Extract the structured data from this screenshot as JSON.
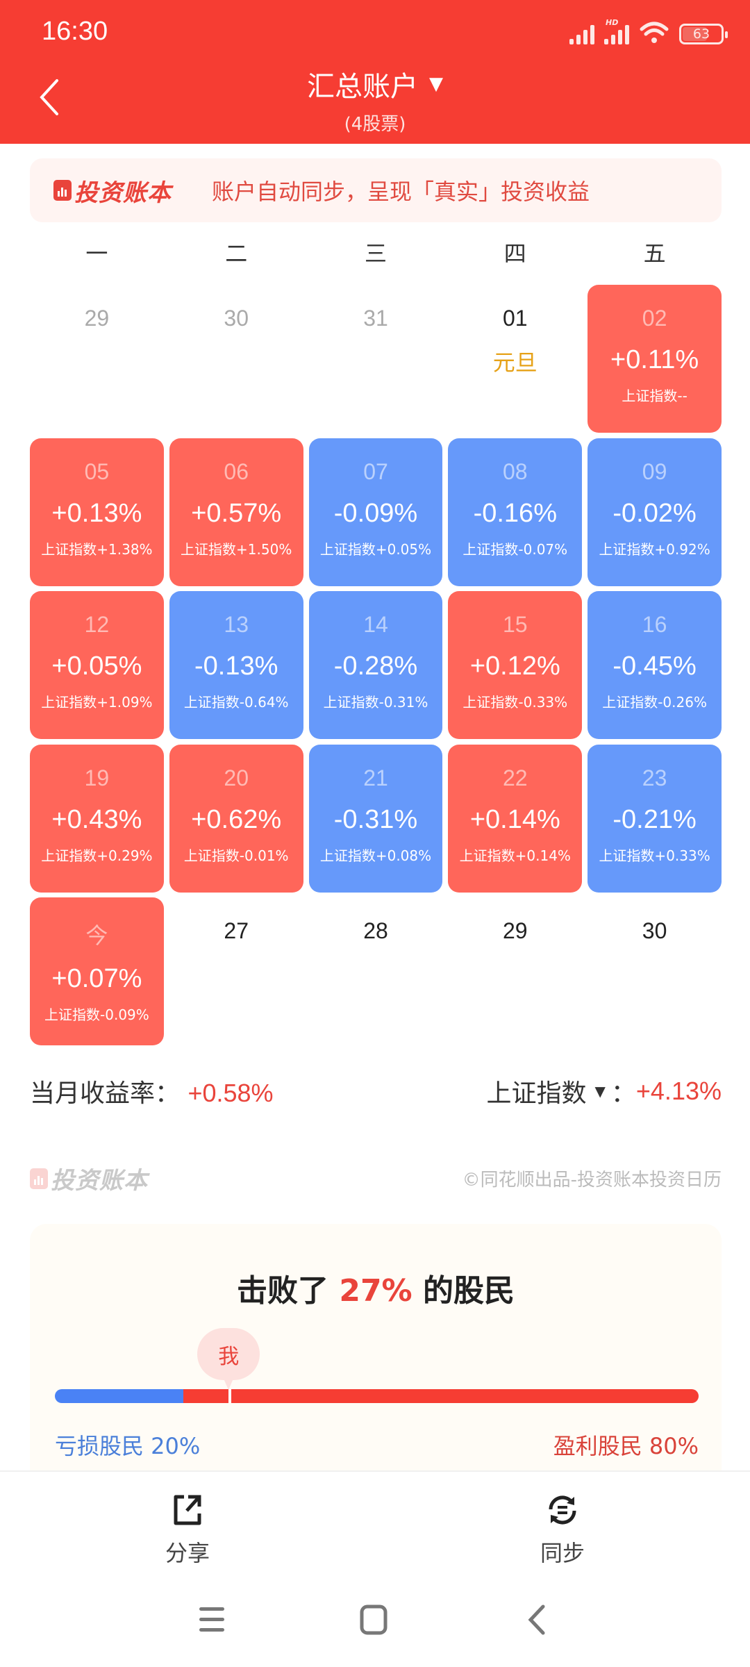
{
  "status_bar": {
    "time": "16:30",
    "battery": "63",
    "network_badge": "HD"
  },
  "header": {
    "back_icon": "chevron-left-icon",
    "title": "汇总账户",
    "dropdown_icon": "▼",
    "subtitle": "(4股票)"
  },
  "banner": {
    "logo_text": "投资账本",
    "message": "账户自动同步，呈现「真实」投资收益"
  },
  "calendar": {
    "weekdays": [
      "一",
      "二",
      "三",
      "四",
      "五"
    ],
    "index_prefix": "上证指数",
    "cells": [
      {
        "day": "29",
        "type": "other"
      },
      {
        "day": "30",
        "type": "other"
      },
      {
        "day": "31",
        "type": "other"
      },
      {
        "day": "01",
        "type": "holiday",
        "holiday": "元旦"
      },
      {
        "day": "02",
        "type": "up",
        "ret": "+0.11%",
        "idx": "上证指数--"
      },
      {
        "day": "05",
        "type": "up",
        "ret": "+0.13%",
        "idx": "上证指数+1.38%"
      },
      {
        "day": "06",
        "type": "up",
        "ret": "+0.57%",
        "idx": "上证指数+1.50%"
      },
      {
        "day": "07",
        "type": "down",
        "ret": "-0.09%",
        "idx": "上证指数+0.05%"
      },
      {
        "day": "08",
        "type": "down",
        "ret": "-0.16%",
        "idx": "上证指数-0.07%"
      },
      {
        "day": "09",
        "type": "down",
        "ret": "-0.02%",
        "idx": "上证指数+0.92%"
      },
      {
        "day": "12",
        "type": "up",
        "ret": "+0.05%",
        "idx": "上证指数+1.09%"
      },
      {
        "day": "13",
        "type": "down",
        "ret": "-0.13%",
        "idx": "上证指数-0.64%"
      },
      {
        "day": "14",
        "type": "down",
        "ret": "-0.28%",
        "idx": "上证指数-0.31%"
      },
      {
        "day": "15",
        "type": "up",
        "ret": "+0.12%",
        "idx": "上证指数-0.33%"
      },
      {
        "day": "16",
        "type": "down",
        "ret": "-0.45%",
        "idx": "上证指数-0.26%"
      },
      {
        "day": "19",
        "type": "up",
        "ret": "+0.43%",
        "idx": "上证指数+0.29%"
      },
      {
        "day": "20",
        "type": "up",
        "ret": "+0.62%",
        "idx": "上证指数-0.01%"
      },
      {
        "day": "21",
        "type": "down",
        "ret": "-0.31%",
        "idx": "上证指数+0.08%"
      },
      {
        "day": "22",
        "type": "up",
        "ret": "+0.14%",
        "idx": "上证指数+0.14%"
      },
      {
        "day": "23",
        "type": "down",
        "ret": "-0.21%",
        "idx": "上证指数+0.33%"
      },
      {
        "day": "今",
        "type": "up",
        "ret": "+0.07%",
        "idx": "上证指数-0.09%"
      },
      {
        "day": "27",
        "type": "future"
      },
      {
        "day": "28",
        "type": "future"
      },
      {
        "day": "29",
        "type": "future"
      },
      {
        "day": "30",
        "type": "future"
      }
    ]
  },
  "summary": {
    "month_return_label": "当月收益率：",
    "month_return_value": "+0.58%",
    "index_label": "上证指数",
    "index_dropdown": "▼",
    "index_colon": "：",
    "index_value": "+4.13%"
  },
  "footer_brand": {
    "logo_text": "投资账本",
    "copyright": "©同花顺出品-投资账本投资日历"
  },
  "beat": {
    "prefix": "击败了 ",
    "percent": "27%",
    "suffix": " 的股民",
    "me_label": "我",
    "loss_label": "亏损股民 20%",
    "gain_label": "盈利股民 80%",
    "loss_pct": 20,
    "me_position_pct": 27
  },
  "actions": {
    "share_label": "分享",
    "sync_label": "同步"
  },
  "colors": {
    "header_red": "#f63d33",
    "up_red": "#ff665a",
    "down_blue": "#6699fa",
    "accent_red": "#e9443b",
    "holiday_gold": "#e6a117"
  }
}
